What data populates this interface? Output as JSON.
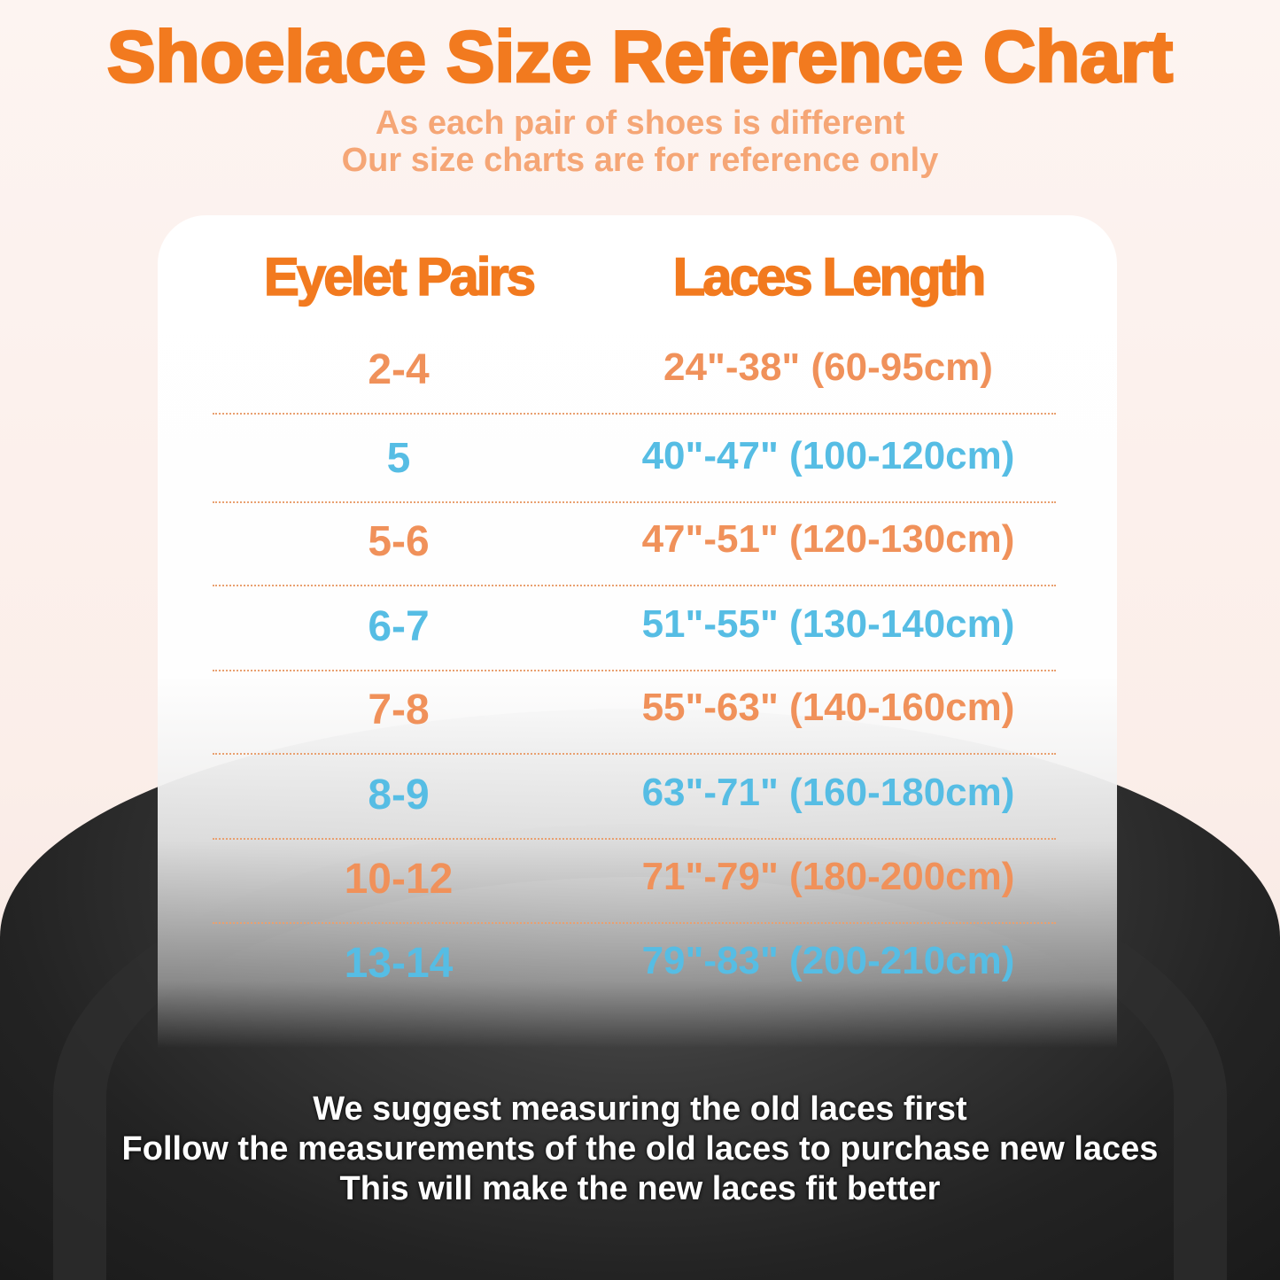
{
  "title": "Shoelace Size Reference Chart",
  "subtitle": [
    "As each pair of shoes is different",
    "Our size charts are for reference only"
  ],
  "table": {
    "headers": [
      "Eyelet Pairs",
      "Laces Length"
    ],
    "rows": [
      {
        "pairs": "2-4",
        "length": "24\"-38\" (60-95cm)",
        "color": "#f0915a"
      },
      {
        "pairs": "5",
        "length": "40\"-47\" (100-120cm)",
        "color": "#56bde4"
      },
      {
        "pairs": "5-6",
        "length": "47\"-51\" (120-130cm)",
        "color": "#f0915a"
      },
      {
        "pairs": "6-7",
        "length": "51\"-55\" (130-140cm)",
        "color": "#56bde4"
      },
      {
        "pairs": "7-8",
        "length": "55\"-63\" (140-160cm)",
        "color": "#f0915a"
      },
      {
        "pairs": "8-9",
        "length": "63\"-71\" (160-180cm)",
        "color": "#56bde4"
      },
      {
        "pairs": "10-12",
        "length": "71\"-79\" (180-200cm)",
        "color": "#f0915a"
      },
      {
        "pairs": "13-14",
        "length": "79\"-83\" (200-210cm)",
        "color": "#56bde4"
      }
    ]
  },
  "footer": [
    "We suggest measuring the old laces first",
    "Follow the measurements of the old laces to purchase new laces",
    "This will make the new laces fit better"
  ],
  "colors": {
    "title": "#f27a1f",
    "subtitle": "#f5a676",
    "orange_row": "#f0915a",
    "blue_row": "#56bde4"
  }
}
